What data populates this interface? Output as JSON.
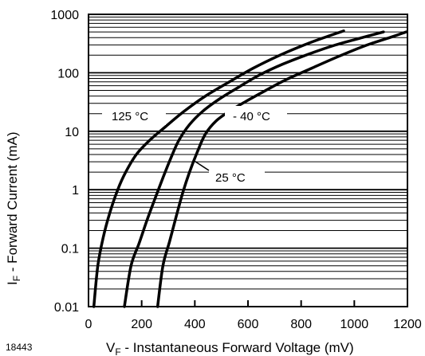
{
  "figure_id": "18443",
  "chart_data": {
    "type": "line",
    "xlabel": {
      "prefix": "V",
      "sub": "F",
      "rest": " - Instantaneous Forward Voltage (mV)"
    },
    "ylabel": {
      "prefix": "I",
      "sub": "F",
      "rest": " - Forward Current (mA)"
    },
    "x_scale": "linear",
    "y_scale": "log",
    "xlim": [
      0,
      1200
    ],
    "ylim": [
      0.01,
      1000
    ],
    "x_ticks": [
      0,
      200,
      400,
      600,
      800,
      1000,
      1200
    ],
    "y_ticks": [
      0.01,
      0.1,
      1,
      10,
      100,
      1000
    ],
    "x_tick_labels": [
      "0",
      "200",
      "400",
      "600",
      "800",
      "1000",
      "1200"
    ],
    "y_tick_labels": [
      "0.01",
      "0.1",
      "1",
      "10",
      "100",
      "1000"
    ],
    "grid": "horizontal log minor and major lines",
    "line_color": "#000000",
    "series": [
      {
        "name": "125 °C",
        "x": [
          20,
          35,
          55,
          80,
          110,
          140,
          180,
          230,
          290,
          360,
          440,
          530,
          620,
          720,
          820,
          900,
          960
        ],
        "y": [
          0.01,
          0.05,
          0.15,
          0.4,
          1,
          2,
          4,
          7,
          12,
          22,
          40,
          70,
          120,
          200,
          310,
          420,
          520
        ]
      },
      {
        "name": "25 °C",
        "x": [
          135,
          160,
          190,
          220,
          250,
          280,
          310,
          340,
          380,
          430,
          490,
          560,
          640,
          730,
          830,
          930,
          1030,
          1110
        ],
        "y": [
          0.01,
          0.05,
          0.12,
          0.3,
          0.7,
          1.6,
          3.5,
          7,
          13,
          22,
          35,
          55,
          90,
          140,
          210,
          300,
          400,
          500
        ]
      },
      {
        "name": "- 40 °C",
        "x": [
          260,
          280,
          305,
          330,
          355,
          380,
          410,
          440,
          480,
          530,
          590,
          660,
          740,
          840,
          940,
          1040,
          1140,
          1195
        ],
        "y": [
          0.01,
          0.05,
          0.13,
          0.35,
          0.9,
          2,
          4.5,
          9,
          15,
          22,
          32,
          48,
          75,
          120,
          190,
          290,
          410,
          500
        ]
      }
    ],
    "annotations": [
      {
        "text": "125 °C",
        "series": "125 °C"
      },
      {
        "text": "25 °C",
        "series": "25 °C"
      },
      {
        "text": "- 40 °C",
        "series": "- 40 °C"
      }
    ]
  }
}
